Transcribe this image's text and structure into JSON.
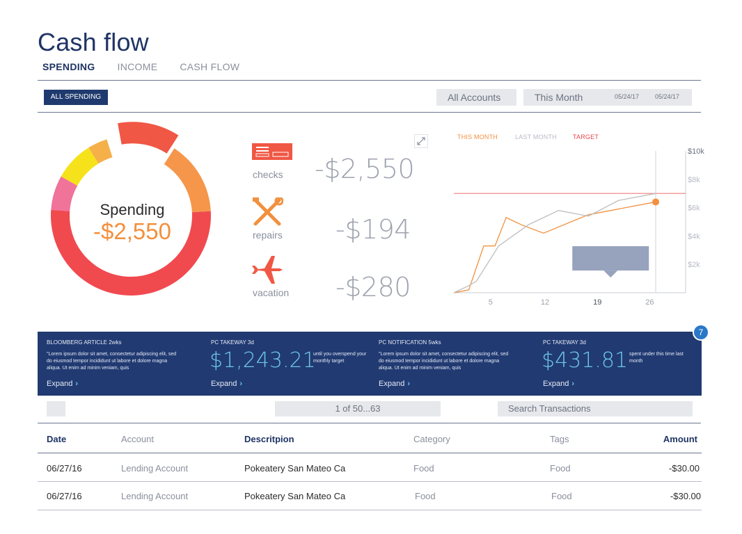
{
  "header": {
    "title": "Cash flow",
    "tabs": [
      "SPENDING",
      "INCOME",
      "CASH FLOW"
    ]
  },
  "filters": {
    "all_spending": "ALL SPENDING",
    "accounts": "All Accounts",
    "period": "This Month",
    "date_from": "05/24/17",
    "date_to": "05/24/17"
  },
  "donut": {
    "label": "Spending",
    "value": "-$2,550",
    "segments": [
      {
        "color": "#f05744",
        "share": 0.12,
        "exploded": true
      },
      {
        "color": "#f5964a",
        "share": 0.15
      },
      {
        "color": "#f04a4f",
        "share": 0.52
      },
      {
        "color": "#f0739a",
        "share": 0.07
      },
      {
        "color": "#f6e21a",
        "share": 0.08
      },
      {
        "color": "#f5b04a",
        "share": 0.04
      }
    ]
  },
  "categories": [
    {
      "label": "checks",
      "amount": "-$2,550",
      "icon": "checks-icon"
    },
    {
      "label": "repairs",
      "amount": "-$194",
      "icon": "tools-icon"
    },
    {
      "label": "vacation",
      "amount": "-$280",
      "icon": "airplane-icon"
    }
  ],
  "chart_data": {
    "type": "line",
    "legend": [
      "THIS MONTH",
      "LAST MONTH",
      "TARGET"
    ],
    "colors": {
      "this_month": "#f2903e",
      "last_month": "#bdbdbd",
      "target": "#f07f7f"
    },
    "x_ticks": [
      "5",
      "12",
      "19",
      "26"
    ],
    "y_ticks": [
      "$10k",
      "$8k",
      "$6k",
      "$4k",
      "$2k"
    ],
    "xlim": [
      0,
      31
    ],
    "ylim": [
      0,
      10000
    ],
    "target": 7000,
    "series": [
      {
        "name": "THIS MONTH",
        "x": [
          0,
          2,
          4,
          5.5,
          7,
          9,
          12,
          18,
          27
        ],
        "y": [
          0,
          200,
          3300,
          3300,
          5300,
          4800,
          4200,
          5500,
          6400
        ]
      },
      {
        "name": "LAST MONTH",
        "x": [
          0,
          2,
          3,
          6,
          10,
          14,
          18,
          22,
          27
        ],
        "y": [
          0,
          500,
          800,
          3300,
          4800,
          5800,
          5400,
          6500,
          7000
        ]
      }
    ],
    "marker": {
      "x": 27,
      "y": 6400
    }
  },
  "insights": [
    {
      "title": "BLOOMBERG ARTICLE 2wks",
      "body": "\"Lorem ipsum dolor sit amet, consectetur adipiscing elit, sed do eiusmod tempor incididunt ut labore et dolore magna aliqua. Ut enim ad minim veniam, quis",
      "expand": "Expand"
    },
    {
      "title": "PC TAKEWAY 3d",
      "big": "$1,243.21",
      "side": "until you overspend your monthly target",
      "expand": "Expand"
    },
    {
      "title": "PC NOTIFICATION 5wks",
      "body": "\"Lorem ipsum dolor sit amet, consectetur adipiscing elit, sed do eiusmod tempor incididunt ut labore et dolore magna aliqua. Ut enim ad minim veniam, quis",
      "expand": "Expand"
    },
    {
      "title": "PC TAKEWAY 3d",
      "big": "$431.81",
      "side": "spent under this time last month",
      "expand": "Expand"
    }
  ],
  "notification_count": "7",
  "search": {
    "pagination": "1 of 50...63",
    "placeholder": "Search Transactions"
  },
  "table": {
    "headers": [
      "Date",
      "Account",
      "Descritpion",
      "Category",
      "Tags",
      "Amount"
    ],
    "rows": [
      [
        "06/27/16",
        "Lending Account",
        "Pokeatery San Mateo Ca",
        "Food",
        "Food",
        "-$30.00"
      ],
      [
        "06/27/16",
        "Lending Account",
        "Pokeatery San Mateo Ca",
        "Food",
        "Food",
        "-$30.00"
      ]
    ]
  }
}
